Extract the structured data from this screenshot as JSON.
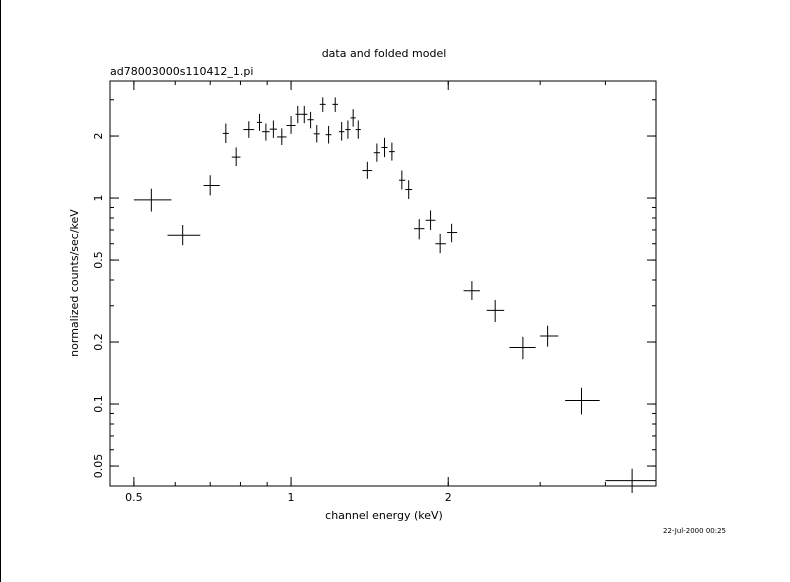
{
  "chart_data": {
    "type": "scatter",
    "title": "data and folded model",
    "subtitle": "ad78003000s110412_1.pi",
    "xlabel": "channel energy (keV)",
    "ylabel": "normalized counts/sec/keV",
    "timestamp": "22-Jul-2000 00:25",
    "x_scale": "log",
    "y_scale": "log",
    "xlim": [
      0.45,
      5.0
    ],
    "ylim": [
      0.04,
      3.7
    ],
    "x_ticks": [
      {
        "value": 0.5,
        "label": "0.5"
      },
      {
        "value": 1,
        "label": "1"
      },
      {
        "value": 2,
        "label": "2"
      }
    ],
    "y_ticks": [
      {
        "value": 0.05,
        "label": "0.05"
      },
      {
        "value": 0.1,
        "label": "0.1"
      },
      {
        "value": 0.2,
        "label": "0.2"
      },
      {
        "value": 0.5,
        "label": "0.5"
      },
      {
        "value": 1,
        "label": "1"
      },
      {
        "value": 2,
        "label": "2"
      }
    ],
    "grid": false,
    "legend": "none",
    "series": [
      {
        "color": "#000000",
        "points": [
          {
            "x": 0.54,
            "xlo": 0.5,
            "xhi": 0.59,
            "y": 0.98,
            "ylo": 0.86,
            "yhi": 1.11
          },
          {
            "x": 0.62,
            "xlo": 0.58,
            "xhi": 0.67,
            "y": 0.66,
            "ylo": 0.59,
            "yhi": 0.74
          },
          {
            "x": 0.7,
            "xlo": 0.68,
            "xhi": 0.73,
            "y": 1.15,
            "ylo": 1.03,
            "yhi": 1.29
          },
          {
            "x": 0.75,
            "xlo": 0.74,
            "xhi": 0.76,
            "y": 2.06,
            "ylo": 1.85,
            "yhi": 2.3
          },
          {
            "x": 0.785,
            "xlo": 0.77,
            "xhi": 0.8,
            "y": 1.58,
            "ylo": 1.43,
            "yhi": 1.76
          },
          {
            "x": 0.83,
            "xlo": 0.81,
            "xhi": 0.85,
            "y": 2.15,
            "ylo": 1.96,
            "yhi": 2.36
          },
          {
            "x": 0.87,
            "xlo": 0.86,
            "xhi": 0.88,
            "y": 2.33,
            "ylo": 2.12,
            "yhi": 2.56
          },
          {
            "x": 0.895,
            "xlo": 0.88,
            "xhi": 0.91,
            "y": 2.1,
            "ylo": 1.9,
            "yhi": 2.3
          },
          {
            "x": 0.925,
            "xlo": 0.91,
            "xhi": 0.94,
            "y": 2.16,
            "ylo": 1.96,
            "yhi": 2.38
          },
          {
            "x": 0.96,
            "xlo": 0.94,
            "xhi": 0.98,
            "y": 1.98,
            "ylo": 1.81,
            "yhi": 2.18
          },
          {
            "x": 1.0,
            "xlo": 0.98,
            "xhi": 1.02,
            "y": 2.25,
            "ylo": 2.05,
            "yhi": 2.5
          },
          {
            "x": 1.03,
            "xlo": 1.02,
            "xhi": 1.045,
            "y": 2.55,
            "ylo": 2.31,
            "yhi": 2.8
          },
          {
            "x": 1.06,
            "xlo": 1.045,
            "xhi": 1.075,
            "y": 2.55,
            "ylo": 2.31,
            "yhi": 2.8
          },
          {
            "x": 1.09,
            "xlo": 1.075,
            "xhi": 1.105,
            "y": 2.4,
            "ylo": 2.18,
            "yhi": 2.62
          },
          {
            "x": 1.12,
            "xlo": 1.105,
            "xhi": 1.135,
            "y": 2.05,
            "ylo": 1.86,
            "yhi": 2.26
          },
          {
            "x": 1.15,
            "xlo": 1.135,
            "xhi": 1.165,
            "y": 2.85,
            "ylo": 2.62,
            "yhi": 3.08
          },
          {
            "x": 1.18,
            "xlo": 1.165,
            "xhi": 1.195,
            "y": 2.03,
            "ylo": 1.84,
            "yhi": 2.24
          },
          {
            "x": 1.215,
            "xlo": 1.2,
            "xhi": 1.23,
            "y": 2.85,
            "ylo": 2.62,
            "yhi": 3.08
          },
          {
            "x": 1.25,
            "xlo": 1.235,
            "xhi": 1.265,
            "y": 2.1,
            "ylo": 1.9,
            "yhi": 2.34
          },
          {
            "x": 1.285,
            "xlo": 1.27,
            "xhi": 1.3,
            "y": 2.15,
            "ylo": 1.94,
            "yhi": 2.38
          },
          {
            "x": 1.315,
            "xlo": 1.3,
            "xhi": 1.33,
            "y": 2.45,
            "ylo": 2.22,
            "yhi": 2.7
          },
          {
            "x": 1.345,
            "xlo": 1.33,
            "xhi": 1.36,
            "y": 2.15,
            "ylo": 1.94,
            "yhi": 2.38
          },
          {
            "x": 1.4,
            "xlo": 1.37,
            "xhi": 1.43,
            "y": 1.36,
            "ylo": 1.24,
            "yhi": 1.5
          },
          {
            "x": 1.46,
            "xlo": 1.44,
            "xhi": 1.48,
            "y": 1.66,
            "ylo": 1.5,
            "yhi": 1.84
          },
          {
            "x": 1.51,
            "xlo": 1.49,
            "xhi": 1.53,
            "y": 1.76,
            "ylo": 1.58,
            "yhi": 1.96
          },
          {
            "x": 1.56,
            "xlo": 1.54,
            "xhi": 1.58,
            "y": 1.68,
            "ylo": 1.52,
            "yhi": 1.86
          },
          {
            "x": 1.63,
            "xlo": 1.61,
            "xhi": 1.655,
            "y": 1.22,
            "ylo": 1.1,
            "yhi": 1.36
          },
          {
            "x": 1.68,
            "xlo": 1.655,
            "xhi": 1.705,
            "y": 1.1,
            "ylo": 0.99,
            "yhi": 1.22
          },
          {
            "x": 1.76,
            "xlo": 1.72,
            "xhi": 1.8,
            "y": 0.71,
            "ylo": 0.63,
            "yhi": 0.79
          },
          {
            "x": 1.85,
            "xlo": 1.81,
            "xhi": 1.89,
            "y": 0.78,
            "ylo": 0.7,
            "yhi": 0.87
          },
          {
            "x": 1.93,
            "xlo": 1.89,
            "xhi": 1.98,
            "y": 0.6,
            "ylo": 0.54,
            "yhi": 0.67
          },
          {
            "x": 2.03,
            "xlo": 1.99,
            "xhi": 2.08,
            "y": 0.68,
            "ylo": 0.61,
            "yhi": 0.75
          },
          {
            "x": 2.22,
            "xlo": 2.14,
            "xhi": 2.3,
            "y": 0.355,
            "ylo": 0.32,
            "yhi": 0.395
          },
          {
            "x": 2.46,
            "xlo": 2.37,
            "xhi": 2.56,
            "y": 0.285,
            "ylo": 0.25,
            "yhi": 0.32
          },
          {
            "x": 2.78,
            "xlo": 2.62,
            "xhi": 2.94,
            "y": 0.188,
            "ylo": 0.165,
            "yhi": 0.212
          },
          {
            "x": 3.1,
            "xlo": 3.0,
            "xhi": 3.25,
            "y": 0.214,
            "ylo": 0.19,
            "yhi": 0.24
          },
          {
            "x": 3.6,
            "xlo": 3.35,
            "xhi": 3.9,
            "y": 0.104,
            "ylo": 0.089,
            "yhi": 0.12
          },
          {
            "x": 4.5,
            "xlo": 4.0,
            "xhi": 5.0,
            "y": 0.0425,
            "ylo": 0.037,
            "yhi": 0.0485
          }
        ]
      }
    ]
  }
}
